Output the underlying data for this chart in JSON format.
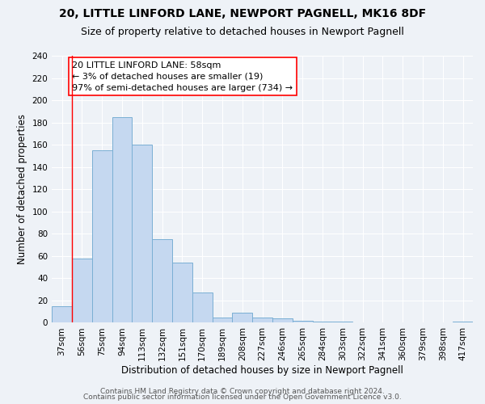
{
  "title": "20, LITTLE LINFORD LANE, NEWPORT PAGNELL, MK16 8DF",
  "subtitle": "Size of property relative to detached houses in Newport Pagnell",
  "xlabel": "Distribution of detached houses by size in Newport Pagnell",
  "ylabel": "Number of detached properties",
  "bar_color": "#c5d8f0",
  "bar_edge_color": "#7aafd4",
  "bin_labels": [
    "37sqm",
    "56sqm",
    "75sqm",
    "94sqm",
    "113sqm",
    "132sqm",
    "151sqm",
    "170sqm",
    "189sqm",
    "208sqm",
    "227sqm",
    "246sqm",
    "265sqm",
    "284sqm",
    "303sqm",
    "322sqm",
    "341sqm",
    "360sqm",
    "379sqm",
    "398sqm",
    "417sqm"
  ],
  "bar_heights": [
    15,
    58,
    155,
    185,
    160,
    75,
    54,
    27,
    5,
    9,
    5,
    4,
    2,
    1,
    1,
    0,
    0,
    0,
    0,
    0,
    1
  ],
  "ylim": [
    0,
    240
  ],
  "yticks": [
    0,
    20,
    40,
    60,
    80,
    100,
    120,
    140,
    160,
    180,
    200,
    220,
    240
  ],
  "red_line_x": 0.5,
  "annotation_line1": "20 LITTLE LINFORD LANE: 58sqm",
  "annotation_line2": "← 3% of detached houses are smaller (19)",
  "annotation_line3": "97% of semi-detached houses are larger (734) →",
  "footer_line1": "Contains HM Land Registry data © Crown copyright and database right 2024.",
  "footer_line2": "Contains public sector information licensed under the Open Government Licence v3.0.",
  "background_color": "#eef2f7",
  "grid_color": "#ffffff",
  "title_fontsize": 10,
  "subtitle_fontsize": 9,
  "axis_label_fontsize": 8.5,
  "tick_fontsize": 7.5,
  "footer_fontsize": 6.5,
  "annotation_fontsize": 8
}
